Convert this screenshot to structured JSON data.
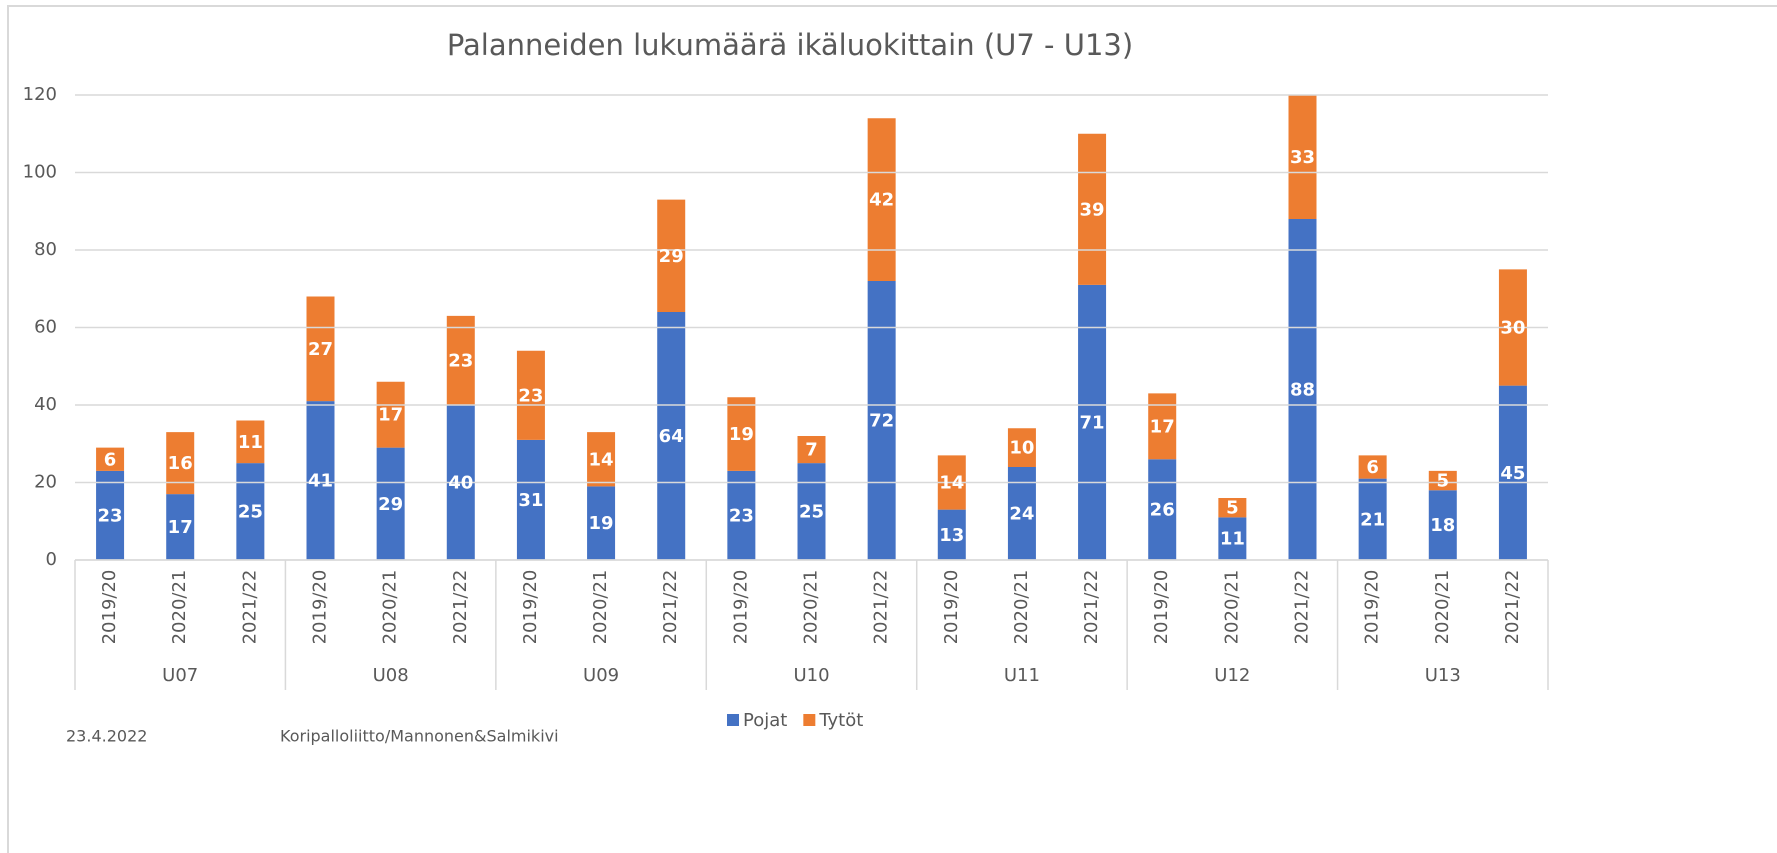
{
  "chart_data": {
    "type": "stacked_bar",
    "title": "Palanneiden lukumäärä ikäluokittain (U7 - U13)",
    "groups": [
      "U07",
      "U08",
      "U09",
      "U10",
      "U11",
      "U12",
      "U13"
    ],
    "categories": [
      "2019/20",
      "2020/21",
      "2021/22",
      "2019/20",
      "2020/21",
      "2021/22",
      "2019/20",
      "2020/21",
      "2021/22",
      "2019/20",
      "2020/21",
      "2021/22",
      "2019/20",
      "2020/21",
      "2021/22",
      "2019/20",
      "2020/21",
      "2021/22",
      "2019/20",
      "2020/21",
      "2021/22"
    ],
    "series": [
      {
        "name": "Pojat",
        "color": "#4472c4",
        "values": [
          23,
          17,
          25,
          41,
          29,
          40,
          31,
          19,
          64,
          23,
          25,
          72,
          13,
          24,
          71,
          26,
          11,
          88,
          21,
          18,
          45
        ]
      },
      {
        "name": "Tytöt",
        "color": "#ed7d31",
        "values": [
          6,
          16,
          11,
          27,
          17,
          23,
          23,
          14,
          29,
          19,
          7,
          42,
          14,
          10,
          39,
          17,
          5,
          33,
          6,
          5,
          30
        ]
      }
    ],
    "ylim": [
      0,
      120
    ],
    "yticks": [
      0,
      20,
      40,
      60,
      80,
      100,
      120
    ],
    "grid": true,
    "footer": {
      "date": "23.4.2022",
      "source": "Koripalloliitto/Mannonen&Salmikivi"
    }
  }
}
